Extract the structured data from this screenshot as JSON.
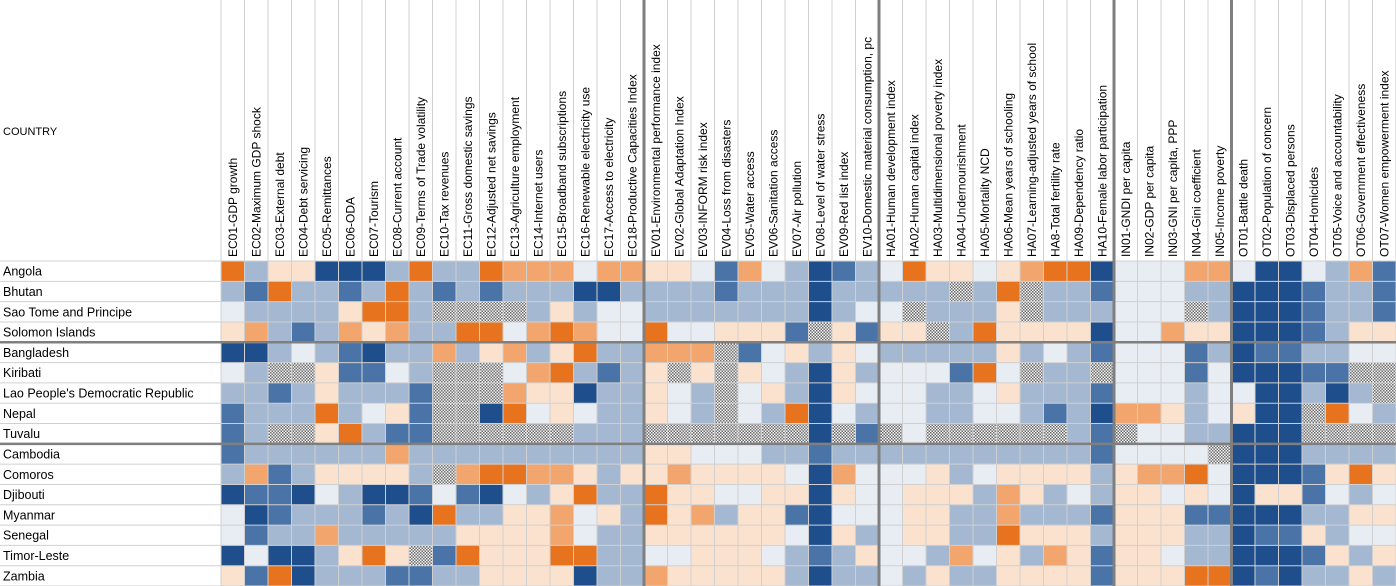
{
  "chart_data": {
    "type": "heatmap",
    "corner_label": "COUNTRY",
    "columns": [
      "EC01-GDP growth",
      "EC02-Maximum GDP shock",
      "EC03-External debt",
      "EC04-Debt servicing",
      "EC05-Remittances",
      "EC06-ODA",
      "EC07-Tourism",
      "EC08-Current account",
      "EC09-Terms of Trade volatility",
      "EC10-Tax revenues",
      "EC11-Gross domestic savings",
      "EC12-Adjusted net savings",
      "EC13-Agriculture employment",
      "EC14-Internet users",
      "EC15-Broadband subscriptions",
      "EC16-Renewable electricity use",
      "EC17-Access to electricity",
      "EC18-Productive Capacities Index",
      "EV01-Environmental performance index",
      "EV02-Global Adaptation Index",
      "EV03-INFORM risk index",
      "EV04-Loss from disasters",
      "EV05-Water access",
      "EV06-Sanitation access",
      "EV07-Air pollution",
      "EV08-Level of water stress",
      "EV09-Red list index",
      "EV10-Domestic material consumption, pc",
      "HA01-Human development index",
      "HA02-Human capital index",
      "HA03-Multidimensional poverty index",
      "HA04-Undernourishment",
      "HA05-Mortality NCD",
      "HA06-Mean years of schooling",
      "HA07-Learning-adjusted years of school",
      "HA8-Total fertility rate",
      "HA09-Dependency ratio",
      "HA10-Female labor participation",
      "IN01-GNDI per capita",
      "IN02-GDP per capita",
      "IN03-GNI per capita, PPP",
      "IN04-Gini coefficient",
      "IN05-Income poverty",
      "OT01-Battle death",
      "OT02-Population of concern",
      "OT03-Displaced persons",
      "OT04-Homicides",
      "OT05-Voice and accountability",
      "OT06-Government effectiveness",
      "OT07-Women empowerment index"
    ],
    "column_groups": [
      {
        "prefix": "EC",
        "count": 18
      },
      {
        "prefix": "EV",
        "count": 10
      },
      {
        "prefix": "HA",
        "count": 10
      },
      {
        "prefix": "IN",
        "count": 5
      },
      {
        "prefix": "OT",
        "count": 7
      }
    ],
    "rows": [
      "Angola",
      "Bhutan",
      "Sao Tome and Principe",
      "Solomon Islands",
      "Bangladesh",
      "Kiribati",
      "Lao People's Democratic Republic",
      "Nepal",
      "Tuvalu",
      "Cambodia",
      "Comoros",
      "Djibouti",
      "Myanmar",
      "Senegal",
      "Timor-Leste",
      "Zambia"
    ],
    "row_groups": [
      4,
      5,
      7
    ],
    "scale_note": "-3 dark blue ... 0 white ... 3 dark orange; null = missing (hatched)",
    "colors": {
      "-3": "#1f4e8c",
      "-2": "#4a74a8",
      "-1": "#a4b8d2",
      "0": "#e8edf4",
      "1": "#fbe2cf",
      "2": "#f2a66e",
      "3": "#e8731e",
      "missing": "#9a9a9a",
      "grid": "#d0d0d0",
      "separator": "#7f7f7f"
    },
    "values": [
      [
        3,
        -1,
        1,
        1,
        -3,
        -3,
        -3,
        -1,
        3,
        -1,
        -1,
        3,
        2,
        2,
        2,
        0,
        2,
        2,
        1,
        1,
        0,
        -2,
        2,
        0,
        -1,
        -3,
        -2,
        -1,
        0,
        3,
        1,
        1,
        0,
        1,
        2,
        3,
        3,
        -3,
        0,
        0,
        0,
        2,
        2,
        0,
        -3,
        -3,
        0,
        -1,
        2,
        -2
      ],
      [
        -1,
        -2,
        3,
        -1,
        -1,
        -2,
        -1,
        3,
        -1,
        -2,
        -1,
        -2,
        -1,
        -1,
        -1,
        -3,
        -3,
        -1,
        -1,
        -1,
        -1,
        -2,
        -1,
        -1,
        -1,
        -3,
        -1,
        -1,
        -1,
        -1,
        -1,
        null,
        -1,
        3,
        null,
        -1,
        -1,
        -2,
        0,
        0,
        0,
        -1,
        -1,
        -3,
        -3,
        -3,
        -2,
        -1,
        -1,
        -2
      ],
      [
        0,
        -1,
        -1,
        -1,
        -1,
        1,
        3,
        3,
        -1,
        null,
        null,
        null,
        null,
        -1,
        1,
        -1,
        0,
        0,
        -1,
        -1,
        -1,
        -1,
        -1,
        -1,
        -1,
        -3,
        -1,
        0,
        0,
        null,
        -1,
        -1,
        -1,
        1,
        null,
        -1,
        -1,
        -1,
        0,
        0,
        0,
        null,
        -1,
        -3,
        -3,
        -3,
        -2,
        -1,
        -1,
        -2
      ],
      [
        1,
        2,
        -1,
        -2,
        -1,
        2,
        1,
        2,
        -1,
        -1,
        3,
        3,
        0,
        2,
        3,
        2,
        0,
        0,
        3,
        0,
        0,
        1,
        1,
        1,
        -2,
        null,
        1,
        -2,
        1,
        1,
        null,
        -1,
        3,
        1,
        1,
        1,
        1,
        -3,
        0,
        0,
        2,
        1,
        1,
        -3,
        -3,
        -3,
        -2,
        -1,
        1,
        1
      ],
      [
        -3,
        -3,
        -1,
        0,
        -1,
        -2,
        -3,
        -1,
        -1,
        2,
        -1,
        1,
        2,
        -1,
        1,
        3,
        -1,
        -1,
        2,
        2,
        2,
        null,
        -2,
        0,
        1,
        -1,
        1,
        0,
        -1,
        -1,
        -1,
        -1,
        -1,
        1,
        -1,
        0,
        -1,
        -2,
        0,
        0,
        0,
        -2,
        -1,
        -3,
        -2,
        -2,
        -1,
        -1,
        0,
        0
      ],
      [
        0,
        -1,
        null,
        null,
        1,
        -2,
        -2,
        0,
        -1,
        null,
        null,
        null,
        0,
        2,
        3,
        -1,
        -2,
        -1,
        1,
        null,
        1,
        null,
        1,
        0,
        -1,
        -3,
        1,
        -1,
        0,
        0,
        0,
        -2,
        3,
        0,
        null,
        -1,
        -1,
        null,
        0,
        0,
        0,
        -2,
        0,
        -3,
        -3,
        -3,
        -2,
        -2,
        null,
        null
      ],
      [
        -1,
        -1,
        -2,
        -1,
        1,
        -1,
        -1,
        -1,
        -2,
        null,
        null,
        null,
        2,
        1,
        1,
        -3,
        -1,
        -1,
        1,
        0,
        -1,
        null,
        0,
        1,
        -1,
        -3,
        1,
        0,
        0,
        0,
        -1,
        -1,
        0,
        1,
        -1,
        -1,
        -1,
        -2,
        0,
        0,
        0,
        -1,
        0,
        0,
        -3,
        -3,
        -1,
        -3,
        -1,
        null
      ],
      [
        -2,
        -1,
        -1,
        -1,
        3,
        -1,
        0,
        1,
        -2,
        null,
        null,
        -3,
        3,
        0,
        1,
        0,
        -1,
        -1,
        1,
        0,
        -1,
        null,
        0,
        -1,
        3,
        -3,
        0,
        -1,
        0,
        0,
        -1,
        -1,
        0,
        0,
        -1,
        -2,
        -1,
        -3,
        2,
        2,
        1,
        -1,
        0,
        1,
        -3,
        -3,
        null,
        3,
        0,
        -1
      ],
      [
        -2,
        -1,
        null,
        null,
        1,
        3,
        -1,
        -2,
        -2,
        null,
        null,
        null,
        null,
        null,
        null,
        -1,
        -1,
        -1,
        null,
        null,
        null,
        null,
        null,
        null,
        null,
        -3,
        null,
        -2,
        null,
        0,
        null,
        null,
        null,
        null,
        null,
        null,
        -1,
        -2,
        null,
        0,
        0,
        -1,
        -1,
        -3,
        -3,
        -3,
        null,
        null,
        null,
        null
      ],
      [
        -2,
        -1,
        -1,
        -1,
        -1,
        -1,
        -1,
        2,
        -1,
        -1,
        -1,
        -1,
        -1,
        -1,
        -1,
        -1,
        -1,
        -1,
        1,
        1,
        0,
        0,
        0,
        -1,
        -1,
        -2,
        -1,
        -1,
        -1,
        -1,
        -1,
        -1,
        -1,
        -1,
        -1,
        -1,
        -1,
        -2,
        0,
        0,
        0,
        0,
        null,
        -3,
        -3,
        -3,
        -1,
        -1,
        -1,
        -1
      ],
      [
        -1,
        2,
        -2,
        -1,
        1,
        1,
        1,
        1,
        -1,
        null,
        2,
        3,
        3,
        2,
        2,
        1,
        -1,
        1,
        1,
        2,
        1,
        1,
        1,
        1,
        0,
        -3,
        2,
        0,
        0,
        0,
        1,
        -1,
        0,
        1,
        1,
        1,
        1,
        -1,
        1,
        2,
        2,
        3,
        0,
        -3,
        -3,
        -3,
        -2,
        1,
        3,
        1
      ],
      [
        -3,
        -2,
        -2,
        -3,
        0,
        -1,
        -3,
        -3,
        -2,
        0,
        -2,
        -3,
        0,
        -1,
        1,
        3,
        -1,
        -1,
        3,
        1,
        1,
        0,
        0,
        1,
        1,
        -3,
        1,
        0,
        0,
        1,
        1,
        1,
        -1,
        2,
        1,
        -1,
        0,
        -1,
        1,
        1,
        0,
        1,
        0,
        -3,
        1,
        1,
        -2,
        0,
        -1,
        0
      ],
      [
        0,
        -3,
        -2,
        -1,
        -1,
        -1,
        -2,
        -1,
        -3,
        3,
        -1,
        -1,
        1,
        1,
        2,
        0,
        1,
        -1,
        3,
        1,
        2,
        -1,
        1,
        1,
        -2,
        -3,
        0,
        0,
        0,
        1,
        1,
        -1,
        -1,
        2,
        -1,
        -1,
        -1,
        -2,
        1,
        1,
        1,
        -2,
        -2,
        -3,
        -3,
        -3,
        -1,
        -1,
        1,
        1
      ],
      [
        0,
        -2,
        -1,
        -1,
        2,
        -1,
        -1,
        -1,
        -1,
        -1,
        1,
        1,
        1,
        1,
        2,
        0,
        -1,
        -1,
        1,
        1,
        1,
        1,
        1,
        1,
        0,
        -3,
        1,
        -1,
        0,
        1,
        1,
        -1,
        -1,
        3,
        1,
        1,
        1,
        -1,
        1,
        1,
        1,
        -1,
        -1,
        -3,
        -2,
        -2,
        1,
        -1,
        0,
        0
      ],
      [
        -3,
        0,
        -3,
        -3,
        -1,
        1,
        3,
        1,
        null,
        -2,
        3,
        1,
        1,
        1,
        3,
        3,
        -1,
        -1,
        0,
        0,
        1,
        1,
        1,
        0,
        -1,
        -2,
        -1,
        1,
        0,
        0,
        -1,
        2,
        0,
        1,
        -1,
        2,
        1,
        -2,
        1,
        1,
        0,
        -1,
        -1,
        -3,
        -3,
        -3,
        -2,
        1,
        -1,
        1
      ],
      [
        1,
        -2,
        3,
        -3,
        -1,
        -1,
        -1,
        -2,
        -2,
        -1,
        -1,
        1,
        1,
        1,
        1,
        -3,
        -1,
        -1,
        2,
        1,
        1,
        1,
        1,
        1,
        -1,
        -3,
        -1,
        -1,
        0,
        -1,
        1,
        -1,
        -1,
        1,
        1,
        1,
        1,
        -2,
        1,
        1,
        1,
        3,
        3,
        -3,
        -2,
        -3,
        -1,
        -1,
        1,
        -1
      ]
    ]
  }
}
